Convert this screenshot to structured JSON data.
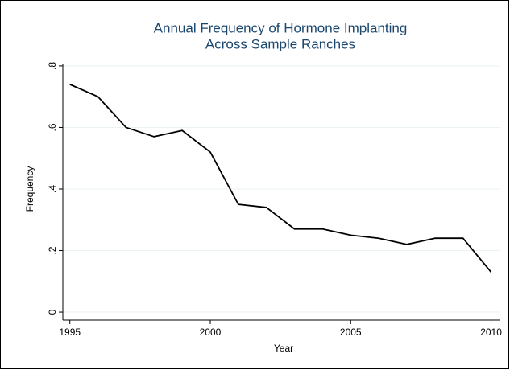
{
  "chart_data": {
    "type": "line",
    "title": [
      "Annual Frequency of Hormone Implanting",
      "Across Sample Ranches"
    ],
    "x_label": "Year",
    "y_label": "Frequency",
    "x": [
      1995,
      1996,
      1997,
      1998,
      1999,
      2000,
      2001,
      2002,
      2003,
      2004,
      2005,
      2006,
      2007,
      2008,
      2009,
      2010
    ],
    "values": [
      0.74,
      0.7,
      0.6,
      0.57,
      0.59,
      0.52,
      0.35,
      0.34,
      0.27,
      0.27,
      0.25,
      0.24,
      0.22,
      0.24,
      0.24,
      0.13
    ],
    "color": "#000000",
    "xlim": [
      1994.75,
      2010.3
    ],
    "xticks": [
      1995,
      2000,
      2005,
      2010
    ],
    "ylim": [
      -0.026,
      0.805
    ],
    "yticks": [
      0,
      {
        "value": 0.2,
        "label": ".2"
      },
      {
        "value": 0.4,
        "label": ".4"
      },
      {
        "value": 0.6,
        "label": ".6"
      },
      {
        "value": 0.8,
        "label": ".8"
      }
    ],
    "grid": true
  }
}
